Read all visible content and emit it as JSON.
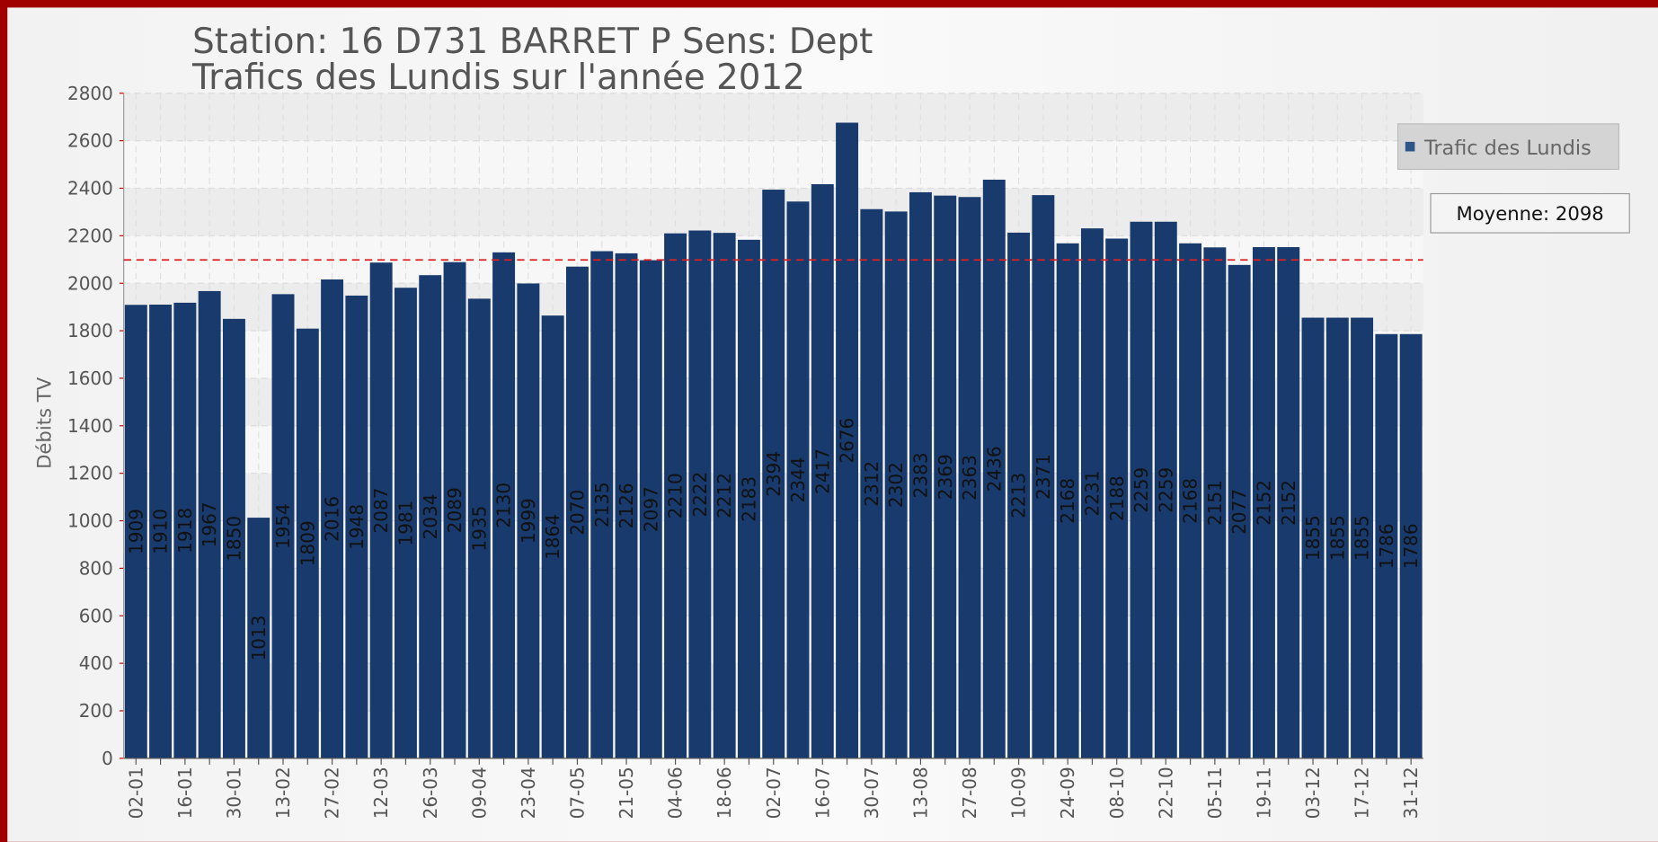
{
  "chart_data": {
    "type": "bar",
    "title": "Station: 16 D731 BARRET P Sens: Dept",
    "subtitle": "Trafics des Lundis sur l'année 2012",
    "y_label": "Débits TV",
    "categories": [
      "02-01",
      null,
      "16-01",
      null,
      "30-01",
      null,
      "13-02",
      null,
      "27-02",
      null,
      "12-03",
      null,
      "26-03",
      null,
      "09-04",
      null,
      "23-04",
      null,
      "07-05",
      null,
      "21-05",
      null,
      "04-06",
      null,
      "18-06",
      null,
      "02-07",
      null,
      "16-07",
      null,
      "30-07",
      null,
      "13-08",
      null,
      "27-08",
      null,
      "10-09",
      null,
      "24-09",
      null,
      "08-10",
      null,
      "22-10",
      null,
      "05-11",
      null,
      "19-11",
      null,
      "03-12",
      null,
      "17-12",
      null,
      "31-12"
    ],
    "series": [
      {
        "name": "Trafic des Lundis",
        "color": "#2f5488",
        "values": [
          1909,
          1910,
          1918,
          1967,
          1850,
          1013,
          1954,
          1809,
          2016,
          1948,
          2087,
          1981,
          2034,
          2089,
          1935,
          2130,
          1999,
          1864,
          2070,
          2135,
          2126,
          2097,
          2210,
          2222,
          2212,
          2183,
          2394,
          2344,
          2417,
          2676,
          2312,
          2302,
          2383,
          2369,
          2363,
          2436,
          2213,
          2371,
          2168,
          2231,
          2188,
          2259,
          2259,
          2168,
          2151,
          2077,
          2152,
          2152,
          1855,
          1855,
          1855,
          1786,
          1786
        ]
      }
    ],
    "average": {
      "value": 2098,
      "label": "Moyenne: 2098",
      "color": "#e02020"
    },
    "ylim": [
      0,
      2800
    ],
    "yticks": [
      0,
      200,
      400,
      600,
      800,
      1000,
      1200,
      1400,
      1600,
      1800,
      2000,
      2200,
      2400,
      2600,
      2800
    ],
    "grid": true,
    "legend": "right"
  }
}
